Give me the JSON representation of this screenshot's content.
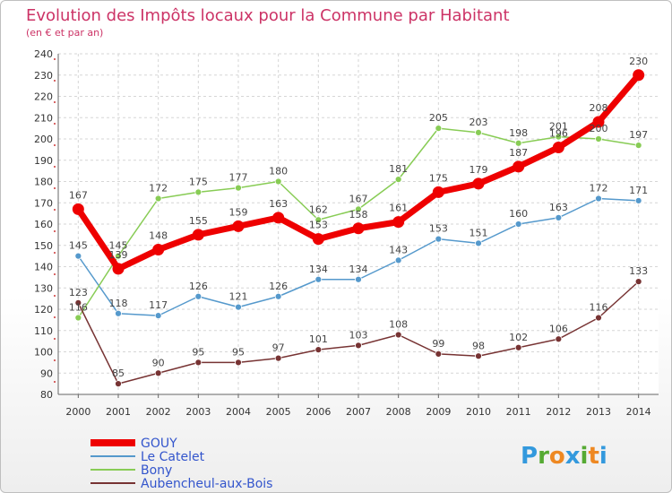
{
  "chart_data": {
    "type": "line",
    "title": "Evolution des Impôts locaux pour la Commune par Habitant",
    "subtitle": "(en € et par an)",
    "xlabel": "",
    "ylabel": "",
    "ylim": [
      80,
      240
    ],
    "y_ticks": [
      80,
      90,
      100,
      110,
      120,
      130,
      140,
      150,
      160,
      170,
      180,
      190,
      200,
      210,
      220,
      230,
      240
    ],
    "categories": [
      "2000",
      "2001",
      "2002",
      "2003",
      "2004",
      "2005",
      "2006",
      "2007",
      "2008",
      "2009",
      "2010",
      "2011",
      "2012",
      "2013",
      "2014"
    ],
    "grid": true,
    "legend_position": "bottom-left",
    "series": [
      {
        "name": "GOUY",
        "color": "#ee0000",
        "values": [
          167,
          139,
          148,
          155,
          159,
          163,
          153,
          158,
          161,
          175,
          179,
          187,
          196,
          208,
          230
        ]
      },
      {
        "name": "Le Catelet",
        "color": "#5599cc",
        "values": [
          145,
          118,
          117,
          126,
          121,
          126,
          134,
          134,
          143,
          153,
          151,
          160,
          163,
          172,
          171
        ]
      },
      {
        "name": "Bony",
        "color": "#88cc55",
        "values": [
          116,
          145,
          172,
          175,
          177,
          180,
          162,
          167,
          181,
          205,
          203,
          198,
          201,
          200,
          197
        ]
      },
      {
        "name": "Aubencheul-aux-Bois",
        "color": "#773333",
        "values": [
          123,
          85,
          90,
          95,
          95,
          97,
          101,
          103,
          108,
          99,
          98,
          102,
          106,
          116,
          133
        ]
      }
    ]
  },
  "branding": {
    "logo_letters": [
      "P",
      "r",
      "o",
      "x",
      "i",
      "t",
      "i"
    ],
    "logo_colors": [
      "#3399dd",
      "#55aa33",
      "#ee8822",
      "#3399dd",
      "#55aa33",
      "#ee8822",
      "#3399dd"
    ]
  }
}
